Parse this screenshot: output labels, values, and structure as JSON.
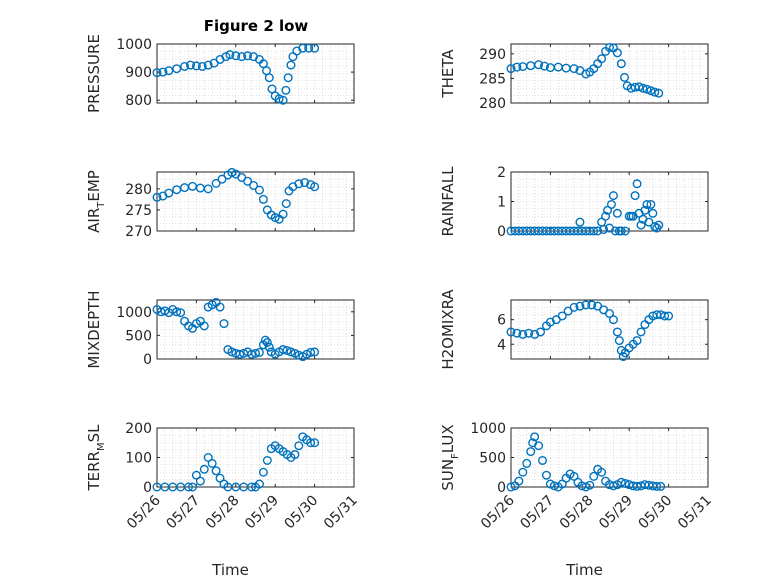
{
  "figure": {
    "title": "Figure 2 low",
    "marker_color": "#0072BD",
    "grid": true,
    "xlabel": "Time"
  },
  "chart_data": [
    {
      "type": "scatter",
      "ylabel": "PRESSURE",
      "xlim": [
        "05/26",
        "05/31"
      ],
      "ylim": [
        790,
        1000
      ],
      "yticks": [
        800,
        900,
        1000
      ],
      "xticks": [
        "05/26",
        "05/27",
        "05/28",
        "05/29",
        "05/30",
        "05/31"
      ],
      "show_xtick_labels": false,
      "has_title": true,
      "points": [
        [
          0,
          898
        ],
        [
          0.15,
          900
        ],
        [
          0.3,
          905
        ],
        [
          0.5,
          912
        ],
        [
          0.7,
          920
        ],
        [
          0.85,
          925
        ],
        [
          1.0,
          922
        ],
        [
          1.15,
          920
        ],
        [
          1.3,
          925
        ],
        [
          1.45,
          932
        ],
        [
          1.6,
          945
        ],
        [
          1.75,
          955
        ],
        [
          1.85,
          962
        ],
        [
          2.0,
          958
        ],
        [
          2.15,
          955
        ],
        [
          2.3,
          958
        ],
        [
          2.45,
          955
        ],
        [
          2.6,
          945
        ],
        [
          2.7,
          930
        ],
        [
          2.78,
          905
        ],
        [
          2.85,
          880
        ],
        [
          2.92,
          840
        ],
        [
          3.0,
          815
        ],
        [
          3.1,
          805
        ],
        [
          3.2,
          800
        ],
        [
          3.27,
          835
        ],
        [
          3.33,
          880
        ],
        [
          3.4,
          925
        ],
        [
          3.45,
          955
        ],
        [
          3.55,
          975
        ],
        [
          3.7,
          985
        ],
        [
          3.85,
          985
        ],
        [
          4.0,
          985
        ]
      ]
    },
    {
      "type": "scatter",
      "ylabel": "THETA",
      "xlim": [
        "05/26",
        "05/31"
      ],
      "ylim": [
        280,
        292
      ],
      "yticks": [
        280,
        285,
        290
      ],
      "xticks": [
        "05/26",
        "05/27",
        "05/28",
        "05/29",
        "05/30",
        "05/31"
      ],
      "show_xtick_labels": false,
      "points": [
        [
          0,
          287
        ],
        [
          0.15,
          287.3
        ],
        [
          0.3,
          287.4
        ],
        [
          0.5,
          287.6
        ],
        [
          0.7,
          287.8
        ],
        [
          0.85,
          287.5
        ],
        [
          1.0,
          287.2
        ],
        [
          1.2,
          287.3
        ],
        [
          1.4,
          287.1
        ],
        [
          1.6,
          287
        ],
        [
          1.75,
          286.6
        ],
        [
          1.9,
          285.9
        ],
        [
          2.0,
          286.3
        ],
        [
          2.1,
          287
        ],
        [
          2.2,
          288
        ],
        [
          2.3,
          289
        ],
        [
          2.4,
          290.5
        ],
        [
          2.5,
          291.3
        ],
        [
          2.6,
          291.2
        ],
        [
          2.7,
          290.2
        ],
        [
          2.8,
          288
        ],
        [
          2.88,
          285.2
        ],
        [
          2.95,
          283.5
        ],
        [
          3.05,
          283
        ],
        [
          3.15,
          283.2
        ],
        [
          3.25,
          283.3
        ],
        [
          3.35,
          283
        ],
        [
          3.45,
          282.8
        ],
        [
          3.55,
          282.5
        ],
        [
          3.65,
          282.2
        ],
        [
          3.75,
          282
        ]
      ]
    },
    {
      "type": "scatter",
      "ylabel": "AIR_TEMP",
      "xlim": [
        "05/26",
        "05/31"
      ],
      "ylim": [
        270,
        284
      ],
      "yticks": [
        270,
        275,
        280
      ],
      "xticks": [
        "05/26",
        "05/27",
        "05/28",
        "05/29",
        "05/30",
        "05/31"
      ],
      "show_xtick_labels": false,
      "points": [
        [
          0,
          278
        ],
        [
          0.15,
          278.3
        ],
        [
          0.3,
          279
        ],
        [
          0.5,
          279.8
        ],
        [
          0.7,
          280.3
        ],
        [
          0.9,
          280.6
        ],
        [
          1.1,
          280.2
        ],
        [
          1.3,
          280
        ],
        [
          1.5,
          281.3
        ],
        [
          1.65,
          282.3
        ],
        [
          1.8,
          283.3
        ],
        [
          1.9,
          283.9
        ],
        [
          2.0,
          283.5
        ],
        [
          2.15,
          282.7
        ],
        [
          2.3,
          281.8
        ],
        [
          2.45,
          280.8
        ],
        [
          2.6,
          279.7
        ],
        [
          2.7,
          277.5
        ],
        [
          2.8,
          275
        ],
        [
          2.9,
          273.8
        ],
        [
          3.0,
          273.2
        ],
        [
          3.1,
          272.8
        ],
        [
          3.2,
          274
        ],
        [
          3.28,
          276.5
        ],
        [
          3.35,
          279.5
        ],
        [
          3.45,
          280.5
        ],
        [
          3.6,
          281.2
        ],
        [
          3.75,
          281.5
        ],
        [
          3.9,
          281
        ],
        [
          4.0,
          280.5
        ]
      ]
    },
    {
      "type": "scatter",
      "ylabel": "RAINFALL",
      "xlim": [
        "05/26",
        "05/31"
      ],
      "ylim": [
        0,
        2
      ],
      "yticks": [
        0,
        1,
        2
      ],
      "xticks": [
        "05/26",
        "05/27",
        "05/28",
        "05/29",
        "05/30",
        "05/31"
      ],
      "show_xtick_labels": false,
      "points": [
        [
          0,
          0
        ],
        [
          0.1,
          0
        ],
        [
          0.2,
          0
        ],
        [
          0.3,
          0
        ],
        [
          0.4,
          0
        ],
        [
          0.5,
          0
        ],
        [
          0.6,
          0
        ],
        [
          0.7,
          0
        ],
        [
          0.8,
          0
        ],
        [
          0.9,
          0
        ],
        [
          1.0,
          0
        ],
        [
          1.1,
          0
        ],
        [
          1.2,
          0
        ],
        [
          1.3,
          0
        ],
        [
          1.4,
          0
        ],
        [
          1.5,
          0
        ],
        [
          1.6,
          0
        ],
        [
          1.7,
          0
        ],
        [
          1.75,
          0.3
        ],
        [
          1.8,
          0
        ],
        [
          1.9,
          0
        ],
        [
          2.0,
          0
        ],
        [
          2.1,
          0
        ],
        [
          2.2,
          0
        ],
        [
          2.3,
          0.3
        ],
        [
          2.35,
          0.05
        ],
        [
          2.4,
          0.5
        ],
        [
          2.45,
          0.7
        ],
        [
          2.5,
          0.1
        ],
        [
          2.55,
          0.9
        ],
        [
          2.6,
          1.2
        ],
        [
          2.65,
          0
        ],
        [
          2.7,
          0.6
        ],
        [
          2.75,
          0
        ],
        [
          2.8,
          0
        ],
        [
          2.9,
          0
        ],
        [
          3.0,
          0.5
        ],
        [
          3.05,
          0.5
        ],
        [
          3.1,
          0.5
        ],
        [
          3.15,
          1.2
        ],
        [
          3.2,
          1.6
        ],
        [
          3.25,
          0.6
        ],
        [
          3.3,
          0.2
        ],
        [
          3.35,
          0.4
        ],
        [
          3.4,
          0.7
        ],
        [
          3.45,
          0.9
        ],
        [
          3.5,
          0.3
        ],
        [
          3.55,
          0.9
        ],
        [
          3.6,
          0.6
        ],
        [
          3.65,
          0.15
        ],
        [
          3.7,
          0.1
        ],
        [
          3.75,
          0.2
        ]
      ]
    },
    {
      "type": "scatter",
      "ylabel": "MIXDEPTH",
      "xlim": [
        "05/26",
        "05/31"
      ],
      "ylim": [
        0,
        1250
      ],
      "yticks": [
        0,
        500,
        1000
      ],
      "xticks": [
        "05/26",
        "05/27",
        "05/28",
        "05/29",
        "05/30",
        "05/31"
      ],
      "show_xtick_labels": false,
      "points": [
        [
          0,
          1050
        ],
        [
          0.1,
          1000
        ],
        [
          0.2,
          1020
        ],
        [
          0.3,
          980
        ],
        [
          0.4,
          1050
        ],
        [
          0.5,
          1000
        ],
        [
          0.6,
          980
        ],
        [
          0.7,
          800
        ],
        [
          0.8,
          700
        ],
        [
          0.9,
          650
        ],
        [
          1.0,
          750
        ],
        [
          1.1,
          800
        ],
        [
          1.2,
          700
        ],
        [
          1.3,
          1100
        ],
        [
          1.4,
          1150
        ],
        [
          1.5,
          1200
        ],
        [
          1.6,
          1100
        ],
        [
          1.7,
          750
        ],
        [
          1.8,
          200
        ],
        [
          1.9,
          150
        ],
        [
          2.0,
          120
        ],
        [
          2.1,
          100
        ],
        [
          2.2,
          120
        ],
        [
          2.3,
          150
        ],
        [
          2.4,
          100
        ],
        [
          2.5,
          120
        ],
        [
          2.6,
          140
        ],
        [
          2.7,
          300
        ],
        [
          2.75,
          400
        ],
        [
          2.8,
          350
        ],
        [
          2.85,
          250
        ],
        [
          2.9,
          150
        ],
        [
          3.0,
          100
        ],
        [
          3.1,
          150
        ],
        [
          3.2,
          200
        ],
        [
          3.3,
          180
        ],
        [
          3.4,
          150
        ],
        [
          3.5,
          120
        ],
        [
          3.6,
          80
        ],
        [
          3.7,
          50
        ],
        [
          3.8,
          100
        ],
        [
          3.9,
          140
        ],
        [
          4.0,
          150
        ]
      ]
    },
    {
      "type": "scatter",
      "ylabel": "H2OMIXRA",
      "xlim": [
        "05/26",
        "05/31"
      ],
      "ylim": [
        2.8,
        7.6
      ],
      "yticks": [
        4,
        6
      ],
      "xticks": [
        "05/26",
        "05/27",
        "05/28",
        "05/29",
        "05/30",
        "05/31"
      ],
      "show_xtick_labels": false,
      "points": [
        [
          0,
          5
        ],
        [
          0.15,
          4.9
        ],
        [
          0.3,
          4.8
        ],
        [
          0.45,
          4.9
        ],
        [
          0.6,
          4.8
        ],
        [
          0.75,
          5
        ],
        [
          0.9,
          5.5
        ],
        [
          1.0,
          5.8
        ],
        [
          1.15,
          6
        ],
        [
          1.3,
          6.3
        ],
        [
          1.45,
          6.7
        ],
        [
          1.6,
          7
        ],
        [
          1.75,
          7.1
        ],
        [
          1.9,
          7.2
        ],
        [
          2.05,
          7.2
        ],
        [
          2.2,
          7.1
        ],
        [
          2.35,
          6.8
        ],
        [
          2.5,
          6.5
        ],
        [
          2.6,
          6
        ],
        [
          2.7,
          5
        ],
        [
          2.75,
          4.3
        ],
        [
          2.8,
          3.5
        ],
        [
          2.85,
          3
        ],
        [
          2.9,
          3.3
        ],
        [
          3.0,
          3.7
        ],
        [
          3.1,
          4
        ],
        [
          3.2,
          4.3
        ],
        [
          3.3,
          5
        ],
        [
          3.4,
          5.6
        ],
        [
          3.5,
          6
        ],
        [
          3.6,
          6.3
        ],
        [
          3.7,
          6.4
        ],
        [
          3.8,
          6.4
        ],
        [
          3.9,
          6.3
        ],
        [
          4.0,
          6.3
        ]
      ]
    },
    {
      "type": "scatter",
      "ylabel": "TERR_MSL",
      "xlim": [
        "05/26",
        "05/31"
      ],
      "ylim": [
        0,
        200
      ],
      "yticks": [
        0,
        100,
        200
      ],
      "xticks": [
        "05/26",
        "05/27",
        "05/28",
        "05/29",
        "05/30",
        "05/31"
      ],
      "show_xtick_labels": true,
      "show_xlabel": true,
      "points": [
        [
          0,
          0
        ],
        [
          0.2,
          0
        ],
        [
          0.4,
          0
        ],
        [
          0.6,
          0
        ],
        [
          0.8,
          0
        ],
        [
          0.9,
          0
        ],
        [
          1.0,
          40
        ],
        [
          1.1,
          20
        ],
        [
          1.2,
          60
        ],
        [
          1.3,
          100
        ],
        [
          1.4,
          80
        ],
        [
          1.5,
          55
        ],
        [
          1.6,
          30
        ],
        [
          1.7,
          10
        ],
        [
          1.8,
          0
        ],
        [
          2.0,
          0
        ],
        [
          2.2,
          0
        ],
        [
          2.4,
          0
        ],
        [
          2.5,
          0
        ],
        [
          2.6,
          10
        ],
        [
          2.7,
          50
        ],
        [
          2.8,
          90
        ],
        [
          2.9,
          130
        ],
        [
          3.0,
          140
        ],
        [
          3.1,
          130
        ],
        [
          3.2,
          120
        ],
        [
          3.3,
          110
        ],
        [
          3.4,
          100
        ],
        [
          3.5,
          110
        ],
        [
          3.6,
          140
        ],
        [
          3.7,
          170
        ],
        [
          3.8,
          160
        ],
        [
          3.9,
          150
        ],
        [
          4.0,
          150
        ]
      ]
    },
    {
      "type": "scatter",
      "ylabel": "SUN_FLUX",
      "xlim": [
        "05/26",
        "05/31"
      ],
      "ylim": [
        0,
        1000
      ],
      "yticks": [
        0,
        500,
        1000
      ],
      "xticks": [
        "05/26",
        "05/27",
        "05/28",
        "05/29",
        "05/30",
        "05/31"
      ],
      "show_xtick_labels": true,
      "show_xlabel": true,
      "points": [
        [
          0,
          0
        ],
        [
          0.1,
          20
        ],
        [
          0.2,
          100
        ],
        [
          0.3,
          250
        ],
        [
          0.4,
          400
        ],
        [
          0.5,
          600
        ],
        [
          0.55,
          750
        ],
        [
          0.6,
          850
        ],
        [
          0.7,
          700
        ],
        [
          0.8,
          450
        ],
        [
          0.9,
          200
        ],
        [
          1.0,
          50
        ],
        [
          1.1,
          20
        ],
        [
          1.2,
          0
        ],
        [
          1.3,
          50
        ],
        [
          1.4,
          150
        ],
        [
          1.5,
          220
        ],
        [
          1.6,
          180
        ],
        [
          1.7,
          80
        ],
        [
          1.8,
          20
        ],
        [
          1.9,
          0
        ],
        [
          2.0,
          30
        ],
        [
          2.1,
          180
        ],
        [
          2.2,
          300
        ],
        [
          2.3,
          250
        ],
        [
          2.4,
          100
        ],
        [
          2.5,
          40
        ],
        [
          2.6,
          20
        ],
        [
          2.7,
          40
        ],
        [
          2.8,
          80
        ],
        [
          2.9,
          60
        ],
        [
          3.0,
          40
        ],
        [
          3.1,
          20
        ],
        [
          3.2,
          10
        ],
        [
          3.3,
          20
        ],
        [
          3.4,
          40
        ],
        [
          3.5,
          30
        ],
        [
          3.6,
          20
        ],
        [
          3.7,
          10
        ],
        [
          3.8,
          10
        ]
      ]
    }
  ]
}
